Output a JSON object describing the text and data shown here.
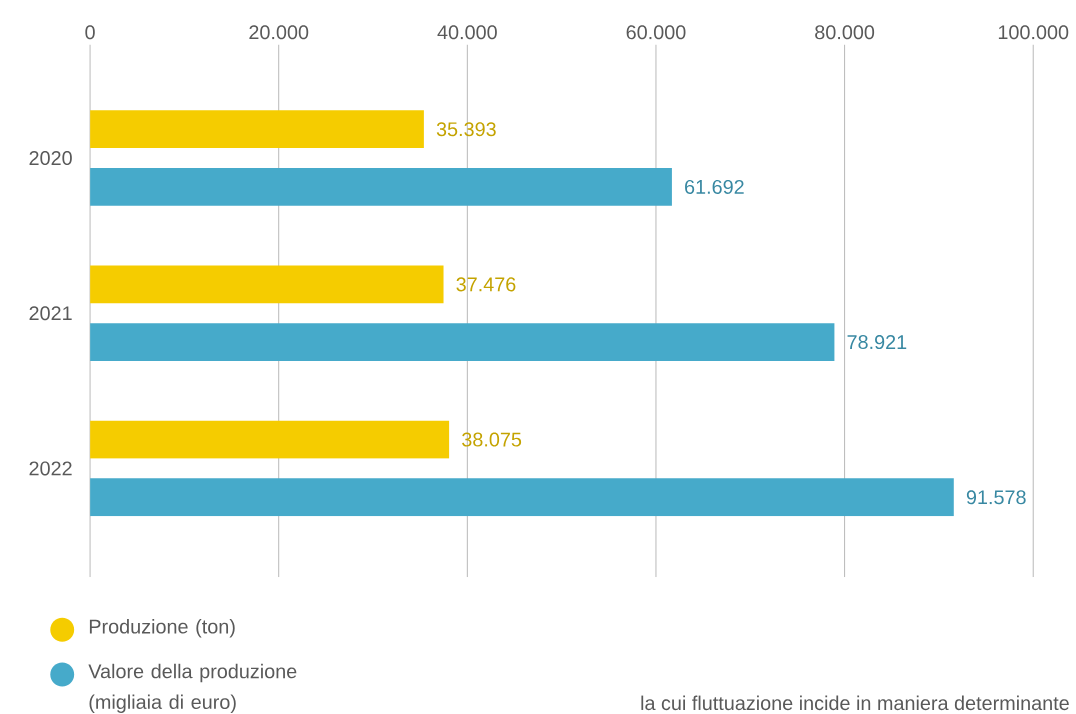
{
  "chart_data": {
    "type": "bar",
    "orientation": "horizontal",
    "categories": [
      "2020",
      "2021",
      "2022"
    ],
    "series": [
      {
        "name": "Produzione (ton)",
        "color": "#f5cc00",
        "values": [
          35393,
          37476,
          38075
        ],
        "value_labels": [
          "35.393",
          "37.476",
          "38.075"
        ]
      },
      {
        "name": "Valore della produzione (migliaia di euro)",
        "color": "#46aaca",
        "values": [
          61692,
          78921,
          91578
        ],
        "value_labels": [
          "61.692",
          "78.921",
          "91.578"
        ]
      }
    ],
    "xlim": [
      0,
      100000
    ],
    "xticks": [
      0,
      {
        "value": 20000,
        "label": "20.000"
      },
      {
        "value": 40000,
        "label": "40.000"
      },
      {
        "value": 60000,
        "label": "60.000"
      },
      {
        "value": 80000,
        "label": "80.000"
      },
      {
        "value": 100000,
        "label": "100.000"
      }
    ],
    "grid": "x",
    "legend": "bottom left",
    "annotations": [
      "la cui fluttuazione incide in maniera determinante"
    ]
  }
}
